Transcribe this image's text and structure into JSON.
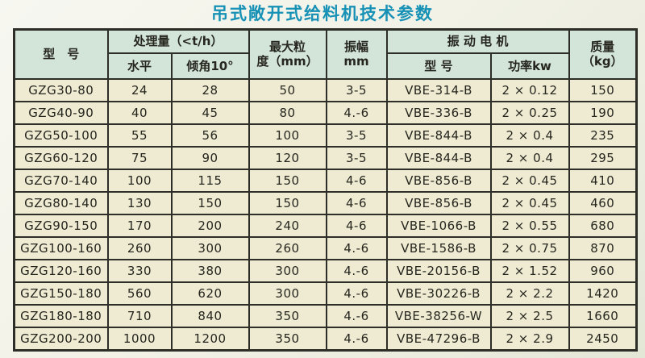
{
  "title": "吊式敞开式给料机技术参数",
  "colors": {
    "title_text": "#1791b5",
    "header_bg": "#d3e5d9",
    "cell_bg": "#eeebd2",
    "grid_border": "#2e2e29",
    "page_bg": "#f2f2e7"
  },
  "table": {
    "column_keys": [
      "model",
      "capacity-horizontal",
      "capacity-incline",
      "max-particle-size",
      "amplitude",
      "motor-model",
      "motor-power",
      "mass"
    ],
    "header": {
      "model": "型　号",
      "capacity_group": "处理量（<t/h）",
      "capacity_sub": [
        "水平",
        "倾角10°"
      ],
      "max_size_lines": [
        "最大粒",
        "度（mm）"
      ],
      "amplitude_lines": [
        "振幅",
        "mm"
      ],
      "motor_group": "振 动 电 机",
      "motor_sub": [
        "型 号",
        "功率kw"
      ],
      "mass_lines": [
        "质量",
        "（kg）"
      ]
    },
    "rows": [
      [
        "GZG30-80",
        "24",
        "28",
        "50",
        "3-5",
        "VBE-314-B",
        "2 × 0.12",
        "150"
      ],
      [
        "GZG40-90",
        "40",
        "45",
        "80",
        "4.-6",
        "VBE-336-B",
        "2 × 0.25",
        "190"
      ],
      [
        "GZG50-100",
        "55",
        "56",
        "100",
        "3-5",
        "VBE-844-B",
        "2 × 0.4",
        "235"
      ],
      [
        "GZG60-120",
        "75",
        "90",
        "120",
        "3-5",
        "VBE-844-B",
        "2 × 0.4",
        "295"
      ],
      [
        "GZG70-140",
        "100",
        "115",
        "150",
        "4-6",
        "VBE-856-B",
        "2 × 0.45",
        "410"
      ],
      [
        "GZG80-140",
        "130",
        "150",
        "150",
        "4-6",
        "VBE-856-B",
        "2 × 0.45",
        "460"
      ],
      [
        "GZG90-150",
        "170",
        "200",
        "240",
        "4-6",
        "VBE-1066-B",
        "2 × 0.55",
        "680"
      ],
      [
        "GZG100-160",
        "260",
        "300",
        "260",
        "4.-6",
        "VBE-1586-B",
        "2 × 0.75",
        "870"
      ],
      [
        "GZG120-160",
        "330",
        "380",
        "300",
        "4.-6",
        "VBE-20156-B",
        "2 × 1.52",
        "960"
      ],
      [
        "GZG150-180",
        "560",
        "620",
        "300",
        "4.-6",
        "VBE-30226-B",
        "2 × 2.2",
        "1420"
      ],
      [
        "GZG180-180",
        "710",
        "840",
        "350",
        "4.-6",
        "VBE-38256-W",
        "2 × 2.5",
        "1660"
      ],
      [
        "GZG200-200",
        "1000",
        "1200",
        "350",
        "4.-6",
        "VBE-47296-B",
        "2 × 2.9",
        "2450"
      ]
    ]
  }
}
